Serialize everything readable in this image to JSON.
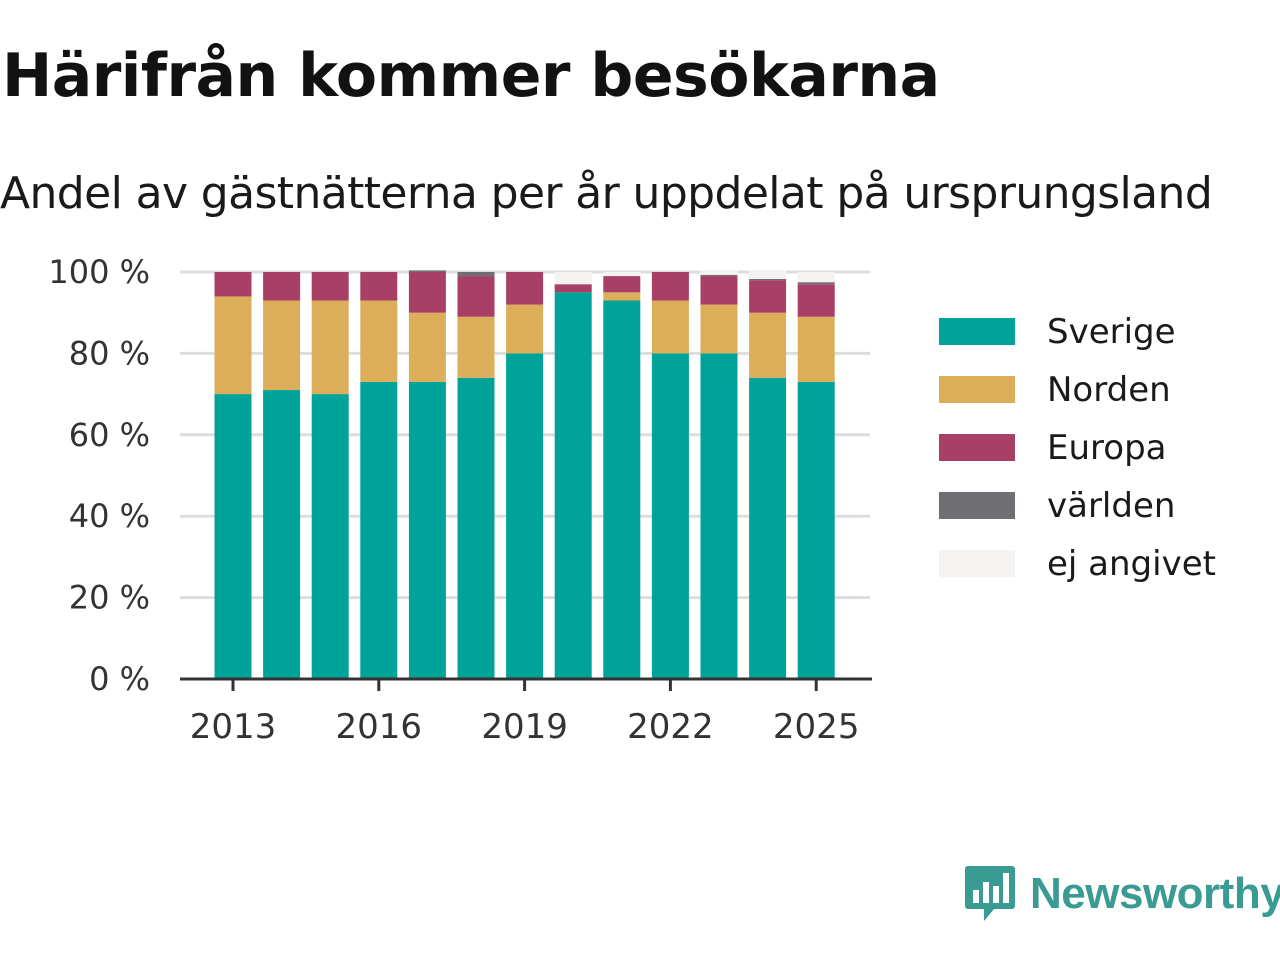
{
  "colors": {
    "Sverige": "#00a39a",
    "Norden": "#dcae5a",
    "Europa": "#a83f67",
    "världen": "#6e6e73",
    "ej angivet": "#f5f3f1",
    "grid": "#dddddd",
    "axis": "#333333",
    "brand": "#3a9b92"
  },
  "brand": {
    "name": "Newsworthy",
    "icon": "bar-chart-speech-bubble-icon"
  },
  "chart_data": {
    "type": "bar",
    "stacked": true,
    "title": "Härifrån kommer besökarna",
    "subtitle": "Andel av gästnätterna per år uppdelat på ursprungsland",
    "xlabel": "",
    "ylabel": "",
    "x": [
      2013,
      2014,
      2015,
      2016,
      2017,
      2018,
      2019,
      2020,
      2021,
      2022,
      2023,
      2024,
      2025
    ],
    "x_tick_labels": [
      "2013",
      "2016",
      "2019",
      "2022",
      "2025"
    ],
    "x_tick_values": [
      2013,
      2016,
      2019,
      2022,
      2025
    ],
    "ylim": [
      0,
      100
    ],
    "y_ticks": [
      0,
      20,
      40,
      60,
      80,
      100
    ],
    "y_tick_labels": [
      "0 %",
      "20 %",
      "40 %",
      "60 %",
      "80 %",
      "100 %"
    ],
    "grid": true,
    "legend_position": "right",
    "series": [
      {
        "name": "Sverige",
        "values": [
          70,
          71,
          70,
          73,
          73,
          74,
          80,
          95,
          93,
          80,
          80,
          74,
          73
        ]
      },
      {
        "name": "Norden",
        "values": [
          24,
          22,
          23,
          20,
          17,
          15,
          12,
          0,
          2,
          13,
          12,
          16,
          16
        ]
      },
      {
        "name": "Europa",
        "values": [
          6,
          7,
          7,
          7,
          10,
          10,
          8,
          2,
          4,
          7,
          7,
          8,
          8
        ]
      },
      {
        "name": "världen",
        "values": [
          0,
          0,
          0,
          0,
          0.4,
          1,
          0,
          0,
          0,
          0,
          0.3,
          0.3,
          0.5
        ]
      },
      {
        "name": "ej angivet",
        "values": [
          0,
          0,
          0,
          0,
          0,
          0,
          0,
          3,
          1,
          0,
          1,
          2,
          2.5
        ]
      }
    ]
  }
}
